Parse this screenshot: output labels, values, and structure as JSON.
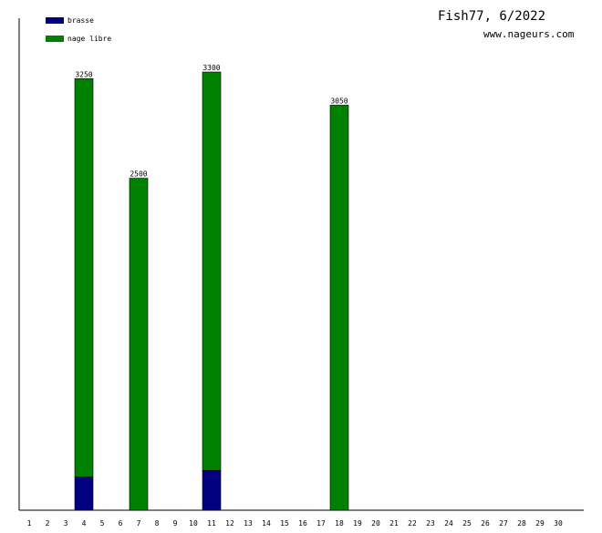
{
  "header": {
    "title": "Fish77, 6/2022",
    "subtitle": "www.nageurs.com"
  },
  "chart_data": {
    "type": "bar",
    "stacked": true,
    "categories": [
      "1",
      "2",
      "3",
      "4",
      "5",
      "6",
      "7",
      "8",
      "9",
      "10",
      "11",
      "12",
      "13",
      "14",
      "15",
      "16",
      "17",
      "18",
      "19",
      "20",
      "21",
      "22",
      "23",
      "24",
      "25",
      "26",
      "27",
      "28",
      "29",
      "30"
    ],
    "series": [
      {
        "name": "brasse",
        "color": "#000080",
        "values": [
          0,
          0,
          0,
          250,
          0,
          0,
          0,
          0,
          0,
          0,
          300,
          0,
          0,
          0,
          0,
          0,
          0,
          0,
          0,
          0,
          0,
          0,
          0,
          0,
          0,
          0,
          0,
          0,
          0,
          0
        ]
      },
      {
        "name": "nage libre",
        "color": "#008000",
        "values": [
          0,
          0,
          0,
          3000,
          0,
          0,
          2500,
          0,
          0,
          0,
          3000,
          0,
          0,
          0,
          0,
          0,
          0,
          3050,
          0,
          0,
          0,
          0,
          0,
          0,
          0,
          0,
          0,
          0,
          0,
          0
        ]
      }
    ],
    "totals": [
      {
        "category": "4",
        "label": "3250"
      },
      {
        "category": "7",
        "label": "2500"
      },
      {
        "category": "11",
        "label": "3300"
      },
      {
        "category": "18",
        "label": "3050"
      }
    ],
    "ylim": [
      0,
      3400
    ],
    "legend": "top-left",
    "grid": false
  }
}
